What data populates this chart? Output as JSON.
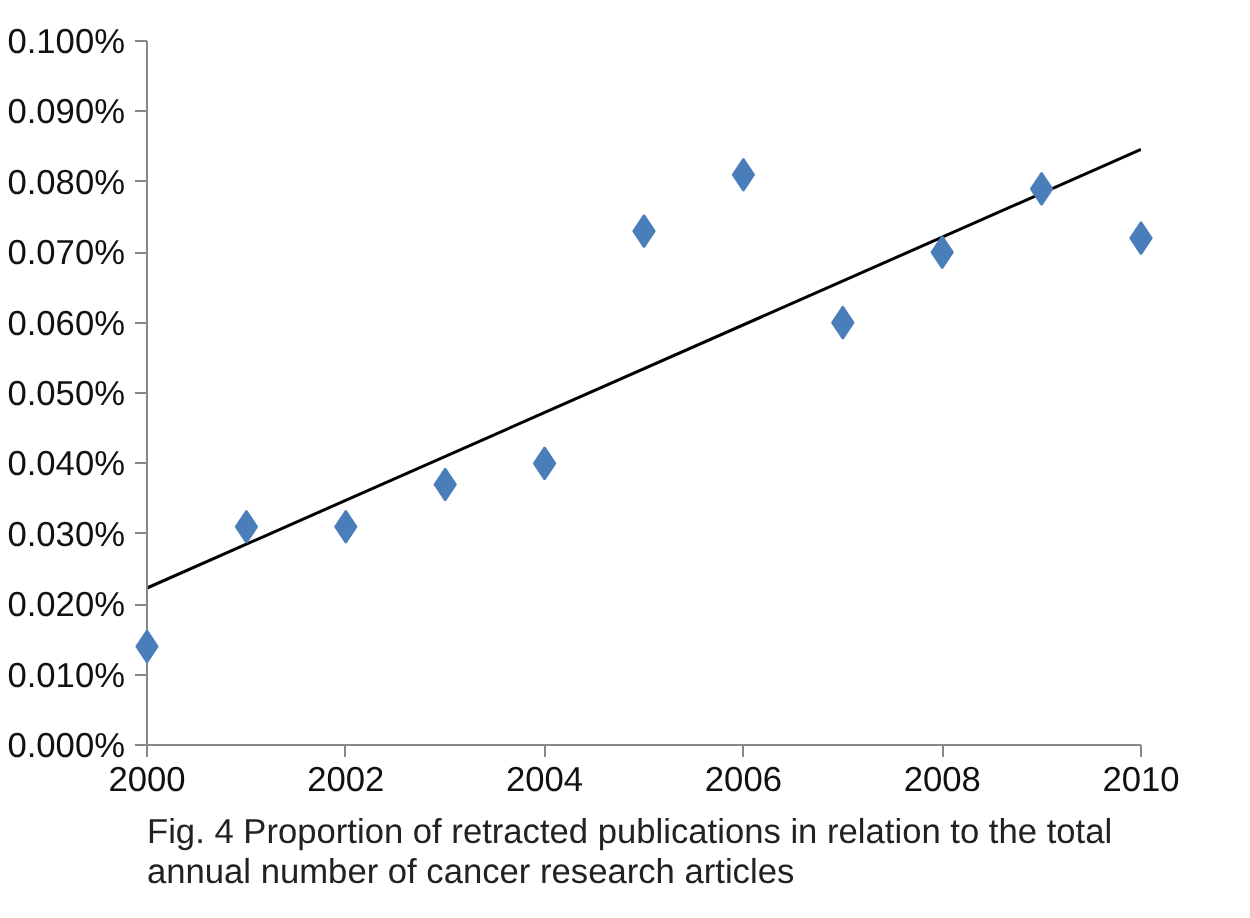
{
  "chart_data": {
    "type": "scatter",
    "title": "Fig. 4 Proportion of retracted publications in relation to the total\nannual number of cancer research articles",
    "x": [
      2000,
      2001,
      2002,
      2003,
      2004,
      2005,
      2006,
      2007,
      2008,
      2009,
      2010
    ],
    "series": [
      {
        "color": "#4a7ebb",
        "marker": "diamond",
        "values": [
          0.014,
          0.031,
          0.031,
          0.037,
          0.04,
          0.073,
          0.081,
          0.06,
          0.07,
          0.079,
          0.072
        ]
      },
      {
        "type": "line",
        "color": "#000000",
        "marker": "none",
        "line_style": "solid",
        "x": [
          2000,
          2010
        ],
        "values": [
          0.0223,
          0.0846
        ]
      }
    ],
    "xlim": [
      2000,
      2010
    ],
    "xticks": [
      2000,
      2002,
      2004,
      2006,
      2008,
      2010
    ],
    "ylim": [
      0,
      0.1
    ],
    "yticks": [
      {
        "value": 0,
        "label": "0.000%"
      },
      {
        "value": 0.01,
        "label": "0.010%"
      },
      {
        "value": 0.02,
        "label": "0.020%"
      },
      {
        "value": 0.03,
        "label": "0.030%"
      },
      {
        "value": 0.04,
        "label": "0.040%"
      },
      {
        "value": 0.05,
        "label": "0.050%"
      },
      {
        "value": 0.06,
        "label": "0.060%"
      },
      {
        "value": 0.07,
        "label": "0.070%"
      },
      {
        "value": 0.08,
        "label": "0.080%"
      },
      {
        "value": 0.09,
        "label": "0.090%"
      },
      {
        "value": 0.1,
        "label": "0.100%"
      }
    ],
    "grid": false
  }
}
